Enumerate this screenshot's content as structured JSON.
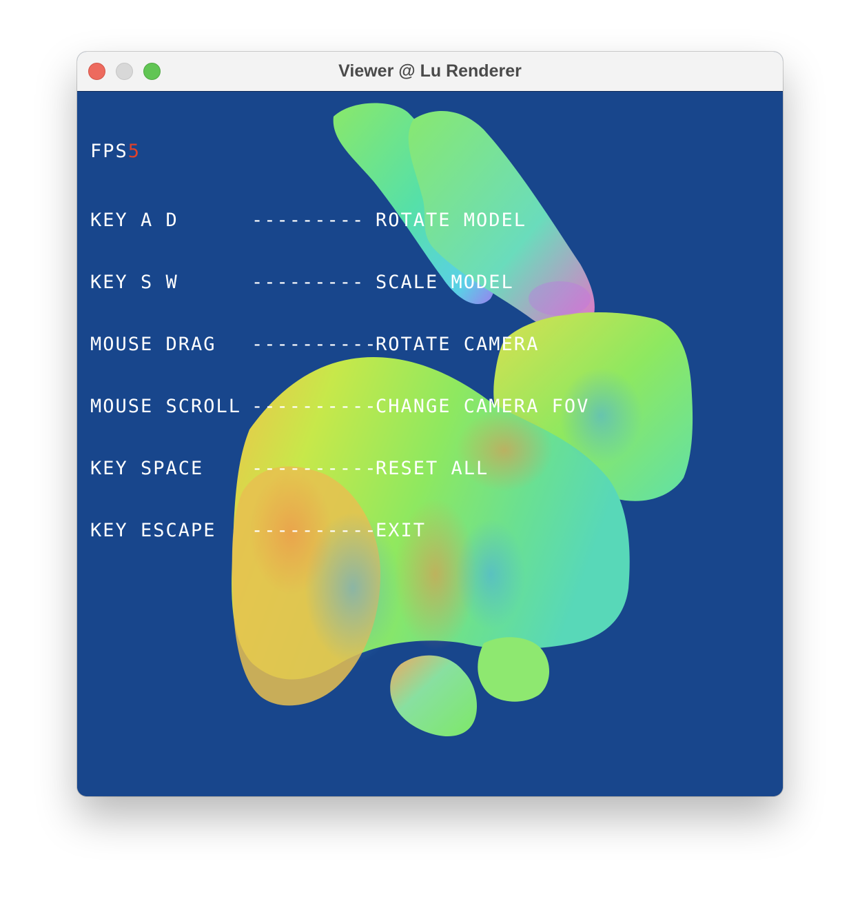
{
  "window": {
    "title": "Viewer @ Lu Renderer"
  },
  "overlay": {
    "fps_label": "FPS",
    "fps_value": "5",
    "help": [
      {
        "key": "KEY A D",
        "sep": "---------",
        "action": "ROTATE MODEL"
      },
      {
        "key": "KEY S W",
        "sep": "---------",
        "action": "SCALE MODEL"
      },
      {
        "key": "MOUSE DRAG",
        "sep": "----------",
        "action": "ROTATE CAMERA"
      },
      {
        "key": "MOUSE SCROLL",
        "sep": "----------",
        "action": "CHANGE CAMERA FOV"
      },
      {
        "key": "KEY SPACE",
        "sep": "----------",
        "action": "RESET ALL"
      },
      {
        "key": "KEY ESCAPE",
        "sep": "----------",
        "action": "EXIT"
      }
    ]
  },
  "colors": {
    "background": "#18468c",
    "fps_value": "#e0412a",
    "text": "#ffffff"
  },
  "scene": {
    "model": "bunny-model",
    "shading": "normal-map"
  }
}
